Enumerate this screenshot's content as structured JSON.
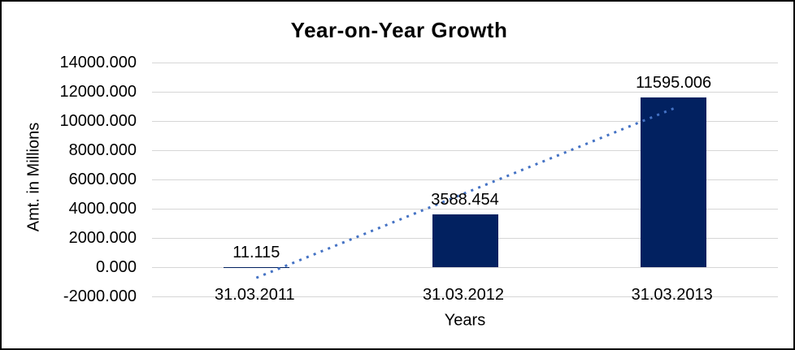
{
  "chart_data": {
    "type": "bar",
    "title": "Year-on-Year Growth",
    "xlabel": "Years",
    "ylabel": "Amt. in Millions",
    "categories": [
      "31.03.2011",
      "31.03.2012",
      "31.03.2013"
    ],
    "values": [
      11.115,
      3588.454,
      11595.006
    ],
    "data_labels": [
      "11.115",
      "3588.454",
      "11595.006"
    ],
    "ylim": [
      -2000,
      14000
    ],
    "ytick_step": 2000,
    "ytick_labels": [
      "14000.000",
      "12000.000",
      "10000.000",
      "8000.000",
      "6000.000",
      "4000.000",
      "2000.000",
      "0.000",
      "-2000.000"
    ],
    "grid": true,
    "legend": "none",
    "bar_color": "#022160",
    "gridline_color": "#d6d6d6",
    "trendline": {
      "type": "linear",
      "style": "dotted",
      "color": "#4472c4",
      "start_category_index": 0,
      "end_category_index": 2,
      "start_value": -727.1,
      "end_value": 10856.8
    }
  }
}
